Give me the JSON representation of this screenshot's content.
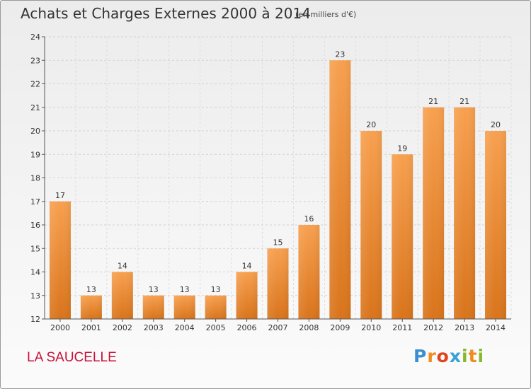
{
  "chart_data": {
    "type": "bar",
    "title": "Achats et Charges Externes 2000 à 2014",
    "subtitle": "(en milliers d'€)",
    "xlabel": "",
    "ylabel": "",
    "categories": [
      "2000",
      "2001",
      "2002",
      "2003",
      "2004",
      "2005",
      "2006",
      "2007",
      "2008",
      "2009",
      "2010",
      "2011",
      "2012",
      "2013",
      "2014"
    ],
    "values": [
      17,
      13,
      14,
      13,
      13,
      13,
      14,
      15,
      16,
      23,
      20,
      19,
      21,
      21,
      20
    ],
    "data_labels": [
      "17",
      "13",
      "14",
      "13",
      "13",
      "13",
      "14",
      "15",
      "16",
      "23",
      "20",
      "19",
      "21",
      "21",
      "20"
    ],
    "ylim": [
      12,
      24
    ],
    "yticks": [
      12,
      13,
      14,
      15,
      16,
      17,
      18,
      19,
      20,
      21,
      22,
      23,
      24
    ],
    "grid": true,
    "legend": "none",
    "bar_color": "#f0913a"
  },
  "footer": {
    "place": "LA SAUCELLE",
    "logo_letters": [
      "P",
      "r",
      "o",
      "x",
      "i",
      "t",
      "i"
    ],
    "logo_colors": [
      "#3a8fd0",
      "#f28c1e",
      "#e0431e",
      "#3aa0d8",
      "#86b92e",
      "#f08b1e",
      "#86b92e"
    ]
  }
}
